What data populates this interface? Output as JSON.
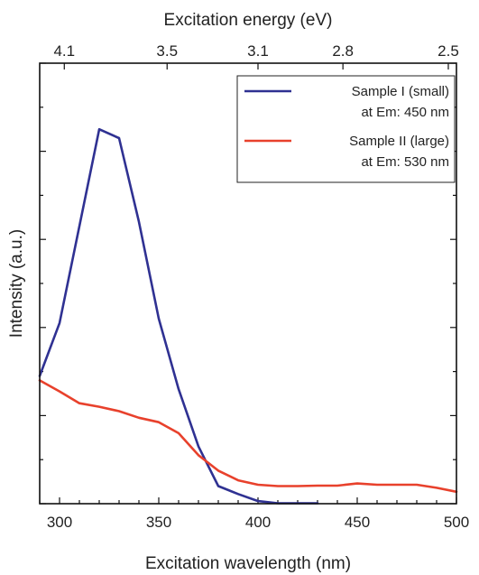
{
  "chart_data": {
    "type": "line",
    "xlabel": "Excitation wavelength (nm)",
    "x2label": "Excitation energy (eV)",
    "ylabel": "Intensity (a.u.)",
    "xlim": [
      290,
      500
    ],
    "ylim": [
      0,
      100
    ],
    "xticks": [
      300,
      350,
      400,
      450,
      500
    ],
    "x2ticks": [
      {
        "label": "4.1",
        "x": 302.4
      },
      {
        "label": "3.5",
        "x": 354.2
      },
      {
        "label": "3.1",
        "x": 400.0
      },
      {
        "label": "2.8",
        "x": 442.8
      },
      {
        "label": "2.5",
        "x": 495.9
      }
    ],
    "legend_position": "top-right",
    "series": [
      {
        "name": "Sample I  (small)",
        "name2": "at Em: 450 nm",
        "color": "#2f3192",
        "x": [
          290,
          300,
          310,
          320,
          330,
          340,
          350,
          360,
          370,
          380,
          390,
          400,
          410,
          420,
          430
        ],
        "y": [
          29,
          41,
          63,
          85,
          83,
          64,
          42,
          26,
          13,
          4,
          2.2,
          0.6,
          0.1,
          0.1,
          0.1
        ]
      },
      {
        "name": "Sample II (large)",
        "name2": "at Em: 530 nm",
        "color": "#e8412c",
        "x": [
          290,
          300,
          310,
          320,
          330,
          340,
          350,
          360,
          370,
          380,
          390,
          400,
          410,
          420,
          430,
          440,
          450,
          460,
          470,
          480,
          490,
          500
        ],
        "y": [
          28,
          25.5,
          22.8,
          22,
          21,
          19.5,
          18.5,
          16,
          11,
          7.5,
          5.3,
          4.3,
          4,
          4,
          4.1,
          4.1,
          4.6,
          4.3,
          4.3,
          4.3,
          3.6,
          2.7
        ]
      }
    ]
  }
}
